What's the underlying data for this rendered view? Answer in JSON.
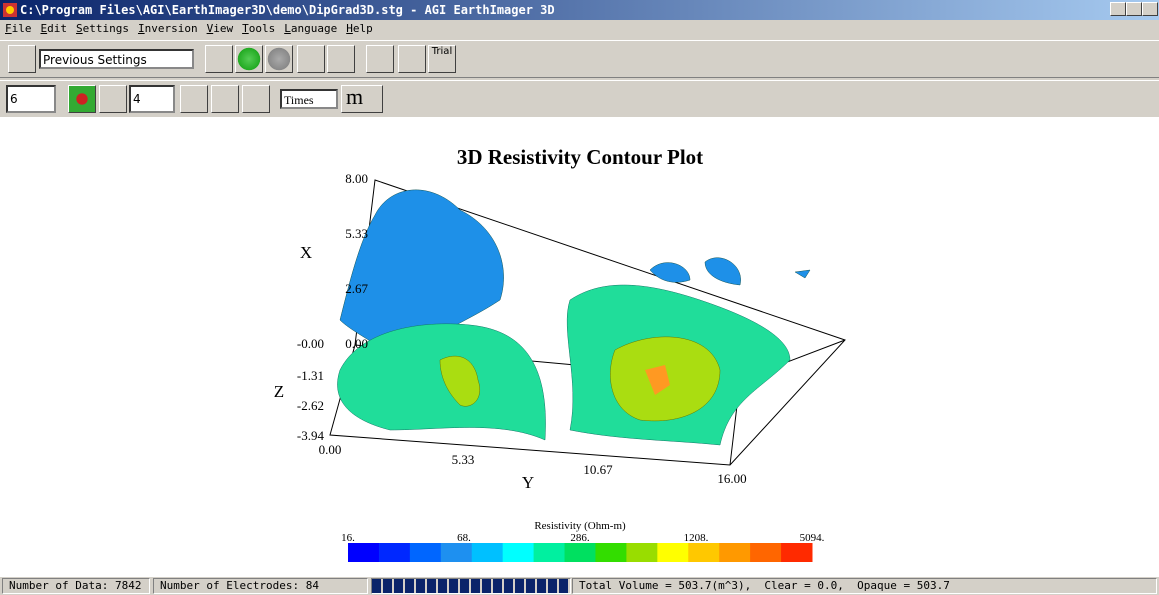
{
  "window": {
    "title": "C:\\Program Files\\AGI\\EarthImager3D\\demo\\DipGrad3D.stg - AGI EarthImager 3D"
  },
  "menu": [
    "File",
    "Edit",
    "Settings",
    "Inversion",
    "View",
    "Tools",
    "Language",
    "Help"
  ],
  "toolbar": {
    "settings_combo": "Previous Settings",
    "trial_button": "Trial"
  },
  "toolbar2": {
    "spin1": "6",
    "spin2": "4",
    "font_combo": "Times",
    "unit_button": "m"
  },
  "plot": {
    "title": "3D Resistivity Contour Plot",
    "x_axis": {
      "label": "X",
      "ticks": [
        "8.00",
        "5.33",
        "2.67",
        "0.00"
      ]
    },
    "z_axis": {
      "label": "Z",
      "ticks": [
        "-0.00",
        "-1.31",
        "-2.62",
        "-3.94"
      ]
    },
    "y_axis": {
      "label": "Y",
      "ticks": [
        "0.00",
        "5.33",
        "10.67",
        "16.00"
      ]
    },
    "colorbar": {
      "title": "Resistivity (Ohm-m)",
      "labels": [
        "16.",
        "68.",
        "286.",
        "1208.",
        "5094."
      ],
      "colors": [
        "#0000ff",
        "#0028ff",
        "#0066ff",
        "#1e90f0",
        "#00c0ff",
        "#00ffff",
        "#00f0a0",
        "#00e060",
        "#33dd00",
        "#99dd00",
        "#ffff00",
        "#ffc800",
        "#ff9900",
        "#ff6600",
        "#ff2a00"
      ]
    }
  },
  "status": {
    "data": "Number of Data: 7842",
    "electrodes": "Number of Electrodes: 84",
    "volume": "Total Volume = 503.7(m^3),  Clear = 0.0,  Opaque = 503.7"
  }
}
